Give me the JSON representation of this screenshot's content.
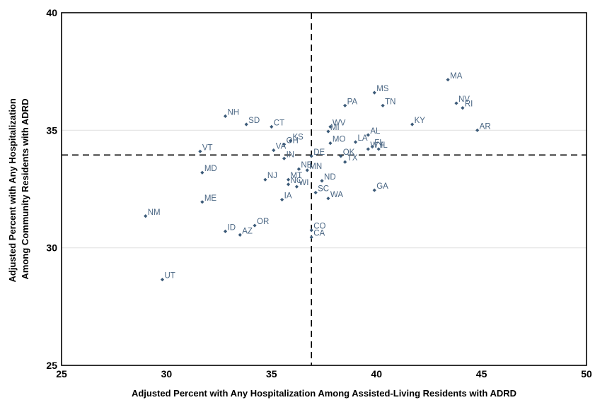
{
  "chart_data": {
    "type": "scatter",
    "title": "",
    "xlabel": "Adjusted Percent with Any Hospitalization Among Assisted-Living Residents with ADRD",
    "ylabel": [
      "Adjusted Percent with Any Hospitalization",
      "Among Community Residents with ADRD"
    ],
    "xlim": [
      25,
      50
    ],
    "ylim": [
      25,
      40
    ],
    "xticks": [
      25,
      30,
      35,
      40,
      45,
      50
    ],
    "yticks": [
      25,
      30,
      35,
      40
    ],
    "grid": "horizontal",
    "reference_lines": {
      "x": 36.9,
      "y": 33.95
    },
    "colors": {
      "marker": "#3b5a78",
      "label": "#4a6683",
      "gridline": "#e3e3e3"
    },
    "points": [
      {
        "label": "MA",
        "x": 43.4,
        "y": 37.15
      },
      {
        "label": "MS",
        "x": 39.9,
        "y": 36.6
      },
      {
        "label": "NV",
        "x": 43.8,
        "y": 36.15
      },
      {
        "label": "RI",
        "x": 44.1,
        "y": 35.95
      },
      {
        "label": "PA",
        "x": 38.5,
        "y": 36.05
      },
      {
        "label": "TN",
        "x": 40.3,
        "y": 36.05
      },
      {
        "label": "NH",
        "x": 32.8,
        "y": 35.6
      },
      {
        "label": "SD",
        "x": 33.8,
        "y": 35.25
      },
      {
        "label": "CT",
        "x": 35.0,
        "y": 35.15
      },
      {
        "label": "KY",
        "x": 41.7,
        "y": 35.25
      },
      {
        "label": "WV",
        "x": 37.8,
        "y": 35.15
      },
      {
        "label": "MI",
        "x": 37.7,
        "y": 34.95
      },
      {
        "label": "AR",
        "x": 44.8,
        "y": 35.0
      },
      {
        "label": "AL",
        "x": 39.6,
        "y": 34.8
      },
      {
        "label": "KS",
        "x": 35.9,
        "y": 34.55
      },
      {
        "label": "OH",
        "x": 35.6,
        "y": 34.4
      },
      {
        "label": "MO",
        "x": 37.8,
        "y": 34.45
      },
      {
        "label": "LA",
        "x": 39.0,
        "y": 34.5
      },
      {
        "label": "FL",
        "x": 39.8,
        "y": 34.3
      },
      {
        "label": "VT",
        "x": 31.6,
        "y": 34.1
      },
      {
        "label": "VA",
        "x": 35.1,
        "y": 34.15
      },
      {
        "label": "IN",
        "x": 35.6,
        "y": 33.8
      },
      {
        "label": "DE",
        "x": 36.9,
        "y": 33.9
      },
      {
        "label": "OK",
        "x": 38.3,
        "y": 33.9
      },
      {
        "label": "WY",
        "x": 39.6,
        "y": 34.2
      },
      {
        "label": "IL",
        "x": 40.1,
        "y": 34.2
      },
      {
        "label": "TX",
        "x": 38.5,
        "y": 33.65
      },
      {
        "label": "MD",
        "x": 31.7,
        "y": 33.2
      },
      {
        "label": "MN",
        "x": 36.7,
        "y": 33.3
      },
      {
        "label": "NE",
        "x": 36.3,
        "y": 33.35
      },
      {
        "label": "MT",
        "x": 35.8,
        "y": 32.9
      },
      {
        "label": "NJ",
        "x": 34.7,
        "y": 32.9
      },
      {
        "label": "NC",
        "x": 35.8,
        "y": 32.7
      },
      {
        "label": "ND",
        "x": 37.4,
        "y": 32.85
      },
      {
        "label": "WI",
        "x": 36.2,
        "y": 32.6
      },
      {
        "label": "GA",
        "x": 39.9,
        "y": 32.45
      },
      {
        "label": "SC",
        "x": 37.1,
        "y": 32.35
      },
      {
        "label": "ME",
        "x": 31.7,
        "y": 31.95
      },
      {
        "label": "IA",
        "x": 35.5,
        "y": 32.05
      },
      {
        "label": "WA",
        "x": 37.7,
        "y": 32.1
      },
      {
        "label": "NM",
        "x": 29.0,
        "y": 31.35
      },
      {
        "label": "OR",
        "x": 34.2,
        "y": 30.95
      },
      {
        "label": "ID",
        "x": 32.8,
        "y": 30.7
      },
      {
        "label": "AZ",
        "x": 33.5,
        "y": 30.55
      },
      {
        "label": "CO",
        "x": 36.9,
        "y": 30.75
      },
      {
        "label": "CA",
        "x": 36.9,
        "y": 30.45
      },
      {
        "label": "UT",
        "x": 29.8,
        "y": 28.65
      }
    ]
  }
}
